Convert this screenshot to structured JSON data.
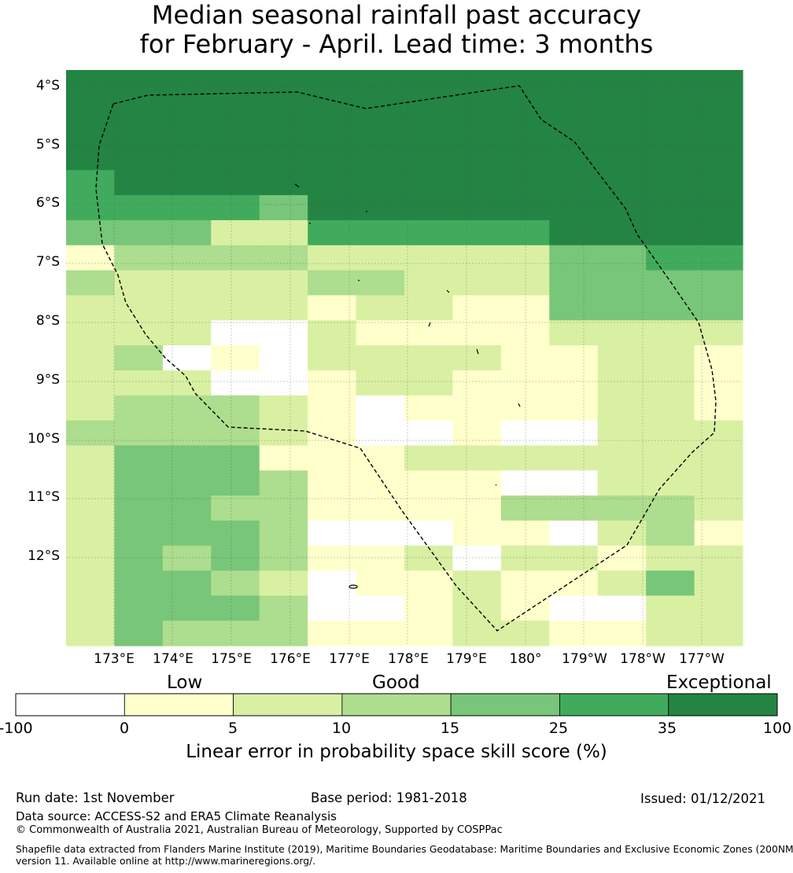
{
  "title": {
    "line1": "Median seasonal rainfall past accuracy",
    "line2": "for February - April. Lead time: 3 months"
  },
  "map": {
    "lat_labels": [
      "4°S",
      "5°S",
      "6°S",
      "7°S",
      "8°S",
      "9°S",
      "10°S",
      "11°S",
      "12°S"
    ],
    "lon_labels": [
      "173°E",
      "174°E",
      "175°E",
      "176°E",
      "177°E",
      "178°E",
      "179°E",
      "180°",
      "179°W",
      "178°W",
      "177°W"
    ],
    "grid_legend": "0=-100..0 (white), 1=0..5, 2=5..10, 3=10..15, 4=15..25, 5=25..35, 6=35..100",
    "grid": [
      "66666666666666",
      "66666666666666",
      "66666666666666",
      "66666666666666",
      "56666666666666",
      "55554666666666",
      "44422555556666",
      "13333222224455",
      "32222332224444",
      "22222122114444",
      "22200211112222",
      "23010222211221",
      "22200122111221",
      "23332101111221",
      "33332100100222",
      "24441112222222",
      "24443111100222",
      "24433111133332",
      "24443000110231",
      "24343112022122",
      "24432011211242",
      "24443001210022",
      "24333111221122"
    ]
  },
  "colorbar": {
    "categories": [
      "Low",
      "Good",
      "Exceptional"
    ],
    "ticks": [
      "-100",
      "0",
      "5",
      "10",
      "15",
      "25",
      "35",
      "100"
    ],
    "colors": [
      "#ffffff",
      "#ffffcc",
      "#d9f0a3",
      "#addd8e",
      "#78c679",
      "#41ab5d",
      "#238443"
    ],
    "title": "Linear error in probability space skill score (%)"
  },
  "footer": {
    "run_date": "Run date: 1st November",
    "base_period": "Base period: 1981-2018",
    "issued": "Issued: 01/12/2021",
    "data_source": "Data source: ACCESS-S2 and ERA5 Climate Reanalysis",
    "copyright": "© Commonwealth of Australia 2021, Australian Bureau of Meteorology, Supported by COSPPac",
    "shapefile": "Shapefile data extracted from Flanders Marine Institute (2019), Maritime Boundaries Geodatabase: Maritime Boundaries and Exclusive Economic Zones (200NM), version 11. Available online at http://www.marineregions.org/."
  }
}
